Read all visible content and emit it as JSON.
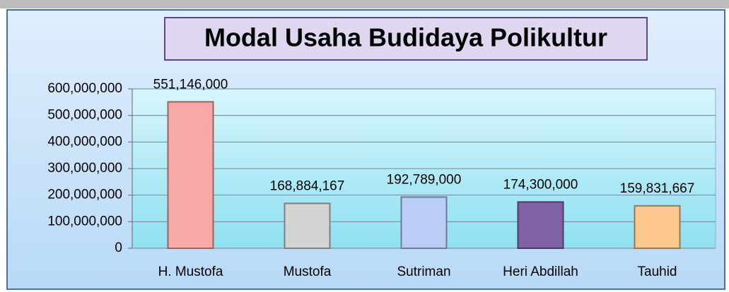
{
  "chart_data": {
    "type": "bar",
    "title": "Modal Usaha Budidaya Polikultur",
    "categories": [
      "H. Mustofa",
      "Mustofa",
      "Sutriman",
      "Heri Abdillah",
      "Tauhid"
    ],
    "values": [
      551146000,
      168884167,
      192789000,
      174300000,
      159831667
    ],
    "value_labels": [
      "551,146,000",
      "168,884,167",
      "192,789,000",
      "174,300,000",
      "159,831,667"
    ],
    "colors": [
      "#f8a8a6",
      "#d4d4d4",
      "#b9cdf6",
      "#7f62a3",
      "#fcc88e"
    ],
    "ylim": [
      0,
      600000000
    ],
    "yticks": [
      0,
      {
        "value": 100000000,
        "label": "100,000,000"
      },
      {
        "value": 200000000,
        "label": "200,000,000"
      },
      {
        "value": 300000000,
        "label": "300,000,000"
      },
      {
        "value": 400000000,
        "label": "400,000,000"
      },
      {
        "value": 500000000,
        "label": "500,000,000"
      },
      {
        "value": 600000000,
        "label": "600,000,000"
      }
    ],
    "grid": true
  }
}
